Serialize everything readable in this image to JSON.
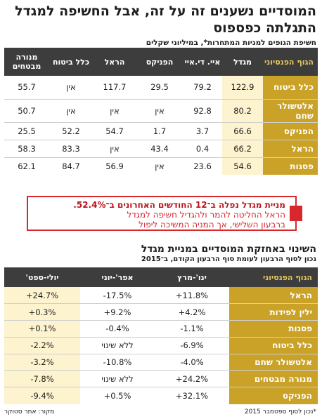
{
  "header": {
    "title_line1": "המוסדיים נשענים זה על זה, אבל החשיפה למגדל",
    "title_line2": "התגלתה כפספוס",
    "subtitle": "חשיפת הגופים למניות המתחרות*, במיליוני שקלים"
  },
  "chart_data": [
    {
      "type": "table",
      "columns": [
        "הגוף הפנסיוני",
        "מגדל",
        "איי. די.איי",
        "הפניקס",
        "הראל",
        "כלל ביטוח",
        "מנורה מבטחים"
      ],
      "rows": [
        {
          "label": "כלל ביטוח",
          "values": [
            "122.9",
            "79.2",
            "29.5",
            "117.7",
            "אין",
            "55.7"
          ]
        },
        {
          "label": "אלטשולר שחם",
          "values": [
            "80.2",
            "92.8",
            "אין",
            "אין",
            "אין",
            "50.7"
          ]
        },
        {
          "label": "הפניקס",
          "values": [
            "66.6",
            "3.7",
            "1.7",
            "54.7",
            "52.2",
            "25.5"
          ]
        },
        {
          "label": "הראל",
          "values": [
            "66.2",
            "0.4",
            "43.4",
            "אין",
            "83.3",
            "58.3"
          ]
        },
        {
          "label": "פסגות",
          "values": [
            "54.6",
            "23.6",
            "אין",
            "56.9",
            "84.7",
            "62.1"
          ]
        }
      ]
    },
    {
      "type": "table",
      "columns": [
        "הגוף הפנסיוני",
        "ינו'-מרץ",
        "אפר'-יוני",
        "יולי-ספט'"
      ],
      "rows": [
        {
          "label": "הראל",
          "values": [
            "+11.8%",
            "-17.5%",
            "+24.7%"
          ]
        },
        {
          "label": "ילין לפידות",
          "values": [
            "+4.2%",
            "+9.2%",
            "+0.3%"
          ]
        },
        {
          "label": "פסגות",
          "values": [
            "-1.1%",
            "-0.4%",
            "+0.1%"
          ]
        },
        {
          "label": "כלל ביטוח",
          "values": [
            "-6.9%",
            "ללא שינוי",
            "-2.2%"
          ]
        },
        {
          "label": "אלטשולר שחם",
          "values": [
            "-4.0%",
            "-10.8%",
            "-3.2%"
          ]
        },
        {
          "label": "מנורה מבטחים",
          "values": [
            "+24.2%",
            "ללא שינוי",
            "-7.8%"
          ]
        },
        {
          "label": "הפניקס",
          "values": [
            "+32.1%",
            "+0.5%",
            "-9.4%"
          ]
        }
      ]
    }
  ],
  "callout": {
    "line1": "מניית מגדל נפלה ב־12 החודשים האחרונים ב־52.4%.",
    "line2": "הראל החליטה להמר ולהגדיל חשיפה למגדל",
    "line3": "ברבעון השלישי, אך המניה המשיכה ליפול"
  },
  "section2": {
    "title": "השינוי באחזקת המוסדיים במניית מגדל",
    "subtitle": "נכון לסוף הרבעון לעומת סוף הרבעון הקודם, ב־2015"
  },
  "footer": {
    "note": "*נכון לסוף ספטמבר 2015",
    "source": "מקור: אתר סטוקר"
  },
  "colors": {
    "gold": "#c9a227",
    "dark": "#3d3d3d",
    "highlight": "#fdf3cf",
    "red": "#d9272e"
  }
}
